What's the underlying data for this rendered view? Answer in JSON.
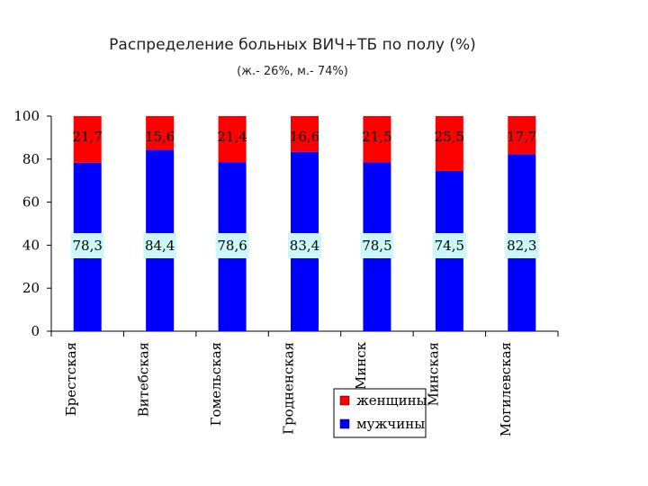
{
  "title": "Распределение больных ВИЧ+ТБ по полу (%)",
  "subtitle": "(ж.- 26%, м.- 74%)",
  "chart_data": {
    "type": "bar",
    "stacked": true,
    "categories": [
      "Брестская",
      "Витебская",
      "Гомельская",
      "Гродненская",
      "Минск",
      "Минская",
      "Могилевская"
    ],
    "series": [
      {
        "name": "мужчины",
        "color": "#0000ff",
        "values": [
          78.3,
          84.4,
          78.6,
          83.4,
          78.5,
          74.5,
          82.3
        ],
        "labels": [
          "78,3",
          "84,4",
          "78,6",
          "83,4",
          "78,5",
          "74,5",
          "82,3"
        ]
      },
      {
        "name": "женщины",
        "color": "#ff0000",
        "values": [
          21.7,
          15.6,
          21.4,
          16.6,
          21.5,
          25.5,
          17.7
        ],
        "labels": [
          "21,7",
          "15,6",
          "21,4",
          "16,6",
          "21,5",
          "25,5",
          "17,7"
        ]
      }
    ],
    "yticks": [
      "0",
      "20",
      "40",
      "60",
      "80",
      "100"
    ],
    "ylim": [
      0,
      100
    ],
    "grid": false,
    "legend": "bottom-right, inside plot"
  }
}
